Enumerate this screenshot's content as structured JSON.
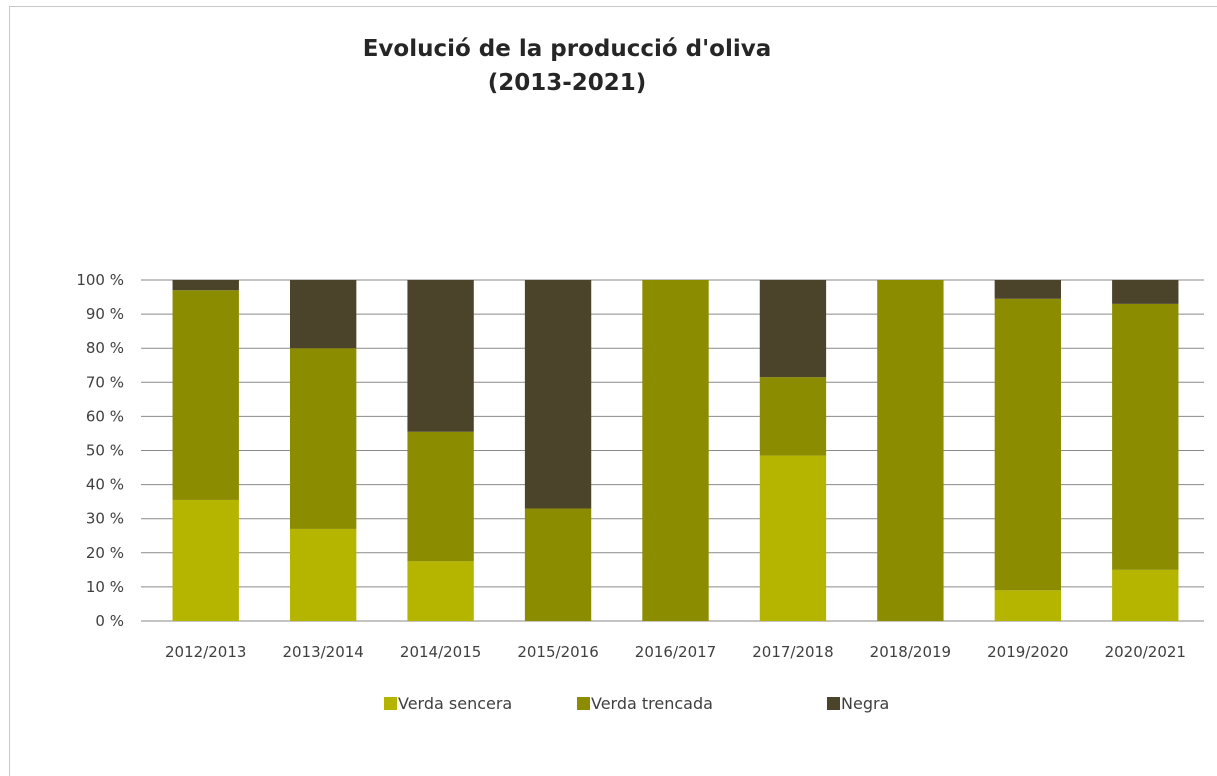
{
  "chart_data": {
    "type": "bar",
    "stacked": true,
    "title": [
      "Evolució de la producció d'oliva",
      "(2013-2021)"
    ],
    "xlabel": "",
    "ylabel": "",
    "ylim": [
      0,
      100
    ],
    "y_ticks": [
      0,
      10,
      20,
      30,
      40,
      50,
      60,
      70,
      80,
      90,
      100
    ],
    "y_tick_suffix": " %",
    "grid": true,
    "legend_position": "bottom",
    "categories": [
      "2012/2013",
      "2013/2014",
      "2014/2015",
      "2015/2016",
      "2016/2017",
      "2017/2018",
      "2018/2019",
      "2019/2020",
      "2020/2021"
    ],
    "series": [
      {
        "name": "Verda sencera",
        "color": "#b5b500",
        "values": [
          35.5,
          27,
          17.5,
          0,
          0,
          48.5,
          0,
          9,
          15
        ]
      },
      {
        "name": "Verda trencada",
        "color": "#8c8c00",
        "values": [
          61.5,
          53,
          38,
          33,
          100,
          23,
          100,
          85.5,
          78
        ]
      },
      {
        "name": "Negra",
        "color": "#4b432a",
        "values": [
          3,
          20,
          44.5,
          67,
          0,
          28.5,
          0,
          5.5,
          7
        ]
      }
    ]
  }
}
